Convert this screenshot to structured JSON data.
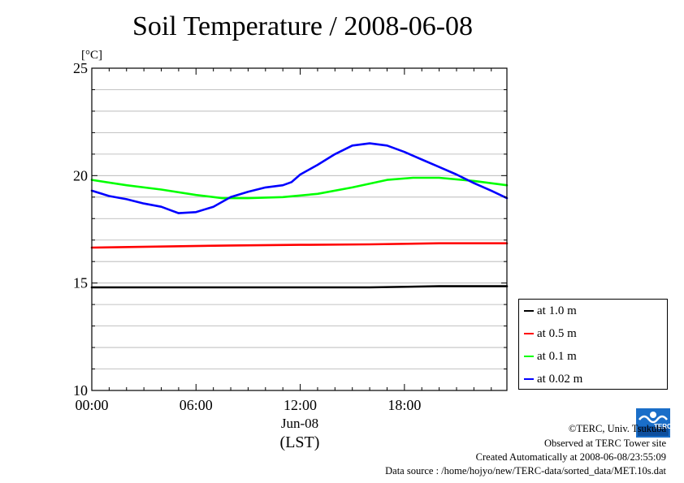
{
  "chart_data": {
    "type": "line",
    "title": "Soil Temperature / 2008-06-08",
    "ylabel": "[°C]",
    "xlabel_date": "Jun-08",
    "xlabel_tz": "(LST)",
    "x_unit": "hour",
    "xlim": [
      0,
      23.9
    ],
    "ylim": [
      10,
      25
    ],
    "y_ticks": [
      10,
      15,
      20,
      25
    ],
    "y_minor_step": 1,
    "x_ticks": [
      0,
      6,
      12,
      18
    ],
    "x_tick_labels": [
      "00:00",
      "06:00",
      "12:00",
      "18:00"
    ],
    "grid": true,
    "legend_position": "right",
    "series": [
      {
        "name": "at 1.0 m",
        "color": "#000000",
        "x": [
          0,
          4,
          8,
          12,
          16,
          20,
          23.9
        ],
        "y": [
          14.8,
          14.8,
          14.8,
          14.8,
          14.8,
          14.85,
          14.85
        ]
      },
      {
        "name": "at 0.5 m",
        "color": "#ff0000",
        "x": [
          0,
          4,
          8,
          12,
          16,
          20,
          23.9
        ],
        "y": [
          16.65,
          16.7,
          16.75,
          16.78,
          16.8,
          16.85,
          16.85
        ]
      },
      {
        "name": "at 0.1 m",
        "color": "#00ff00",
        "x": [
          0,
          2,
          4,
          6,
          7.5,
          9,
          11,
          13,
          15,
          17,
          18.5,
          20,
          22,
          23.9
        ],
        "y": [
          19.8,
          19.55,
          19.35,
          19.1,
          18.95,
          18.95,
          19.0,
          19.15,
          19.45,
          19.8,
          19.9,
          19.9,
          19.75,
          19.55
        ]
      },
      {
        "name": "at 0.02 m",
        "color": "#0000ff",
        "x": [
          0,
          1,
          2,
          3,
          4,
          4.5,
          5,
          6,
          7,
          8,
          9,
          10,
          11,
          11.5,
          12,
          13,
          14,
          15,
          16,
          17,
          18,
          19,
          20,
          21,
          22,
          23,
          23.9
        ],
        "y": [
          19.3,
          19.05,
          18.9,
          18.7,
          18.55,
          18.4,
          18.25,
          18.3,
          18.55,
          19.0,
          19.25,
          19.45,
          19.55,
          19.7,
          20.05,
          20.5,
          21.0,
          21.4,
          21.5,
          21.4,
          21.1,
          20.75,
          20.4,
          20.05,
          19.65,
          19.3,
          18.95
        ]
      }
    ]
  },
  "footer": {
    "line1": "©TERC, Univ. Tsukuba",
    "line2": "Observed at TERC Tower site",
    "line3": "Created Automatically at 2008-06-08/23:55:09",
    "line4": "Data source : /home/hojyo/new/TERC-data/sorted_data/MET.10s.dat"
  },
  "logo": {
    "name": "terc-logo-icon",
    "text": "TERC",
    "color": "#1a6ec8"
  }
}
